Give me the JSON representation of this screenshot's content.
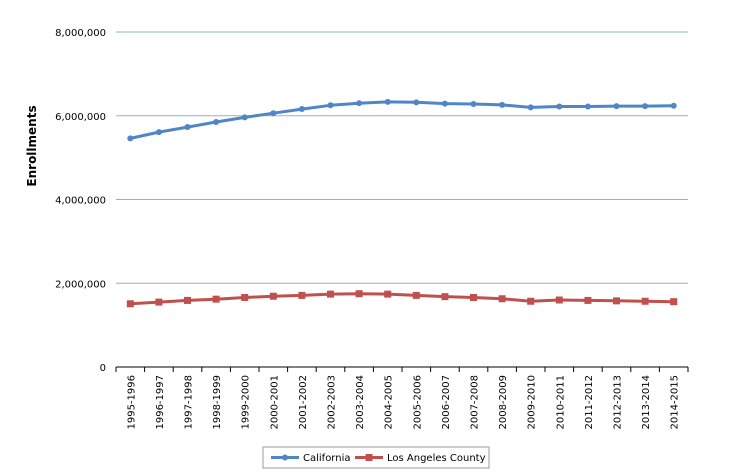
{
  "chart_data": {
    "type": "line",
    "title": "",
    "xlabel": "",
    "ylabel": "Enrollments",
    "categories": [
      "1995-1996",
      "1996-1997",
      "1997-1998",
      "1998-1999",
      "1999-2000",
      "2000-2001",
      "2001-2002",
      "2002-2003",
      "2003-2004",
      "2004-2005",
      "2005-2006",
      "2006-2007",
      "2007-2008",
      "2008-2009",
      "2009-2010",
      "2010-2011",
      "2011-2012",
      "2012-2013",
      "2013-2014",
      "2014-2015"
    ],
    "ylim": [
      0,
      8000000
    ],
    "yticks": [
      0,
      2000000,
      4000000,
      6000000,
      8000000
    ],
    "ytick_labels": [
      "0",
      "2,000,000",
      "4,000,000",
      "6,000,000",
      "8,000,000"
    ],
    "grid": "horizontal",
    "legend_position": "bottom",
    "series": [
      {
        "name": "California",
        "color": "#4F86C6",
        "marker": "circle",
        "values": [
          5460000,
          5610000,
          5730000,
          5850000,
          5960000,
          6060000,
          6160000,
          6250000,
          6300000,
          6330000,
          6320000,
          6290000,
          6280000,
          6260000,
          6200000,
          6220000,
          6220000,
          6230000,
          6230000,
          6240000
        ]
      },
      {
        "name": "Los Angeles County",
        "color": "#C0504D",
        "marker": "square",
        "values": [
          1510000,
          1550000,
          1590000,
          1620000,
          1660000,
          1690000,
          1710000,
          1740000,
          1750000,
          1740000,
          1710000,
          1680000,
          1660000,
          1630000,
          1570000,
          1600000,
          1590000,
          1580000,
          1570000,
          1560000
        ]
      }
    ]
  }
}
